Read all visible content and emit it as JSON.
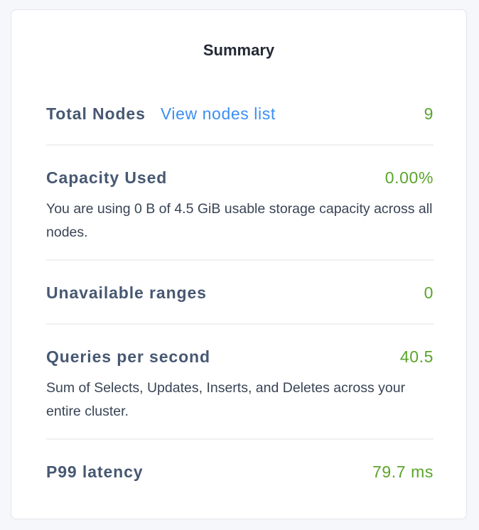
{
  "title": "Summary",
  "colors": {
    "label": "#475872",
    "value": "#5aa52a",
    "link": "#3a8ff5"
  },
  "rows": [
    {
      "label": "Total Nodes",
      "link": "View nodes list",
      "value": "9"
    },
    {
      "label": "Capacity Used",
      "value": "0.00%",
      "description": "You are using 0 B of 4.5 GiB usable storage capacity across all nodes."
    },
    {
      "label": "Unavailable ranges",
      "value": "0"
    },
    {
      "label": "Queries per second",
      "value": "40.5",
      "description": "Sum of Selects, Updates, Inserts, and Deletes across your entire cluster."
    },
    {
      "label": "P99 latency",
      "value": "79.7 ms"
    }
  ]
}
